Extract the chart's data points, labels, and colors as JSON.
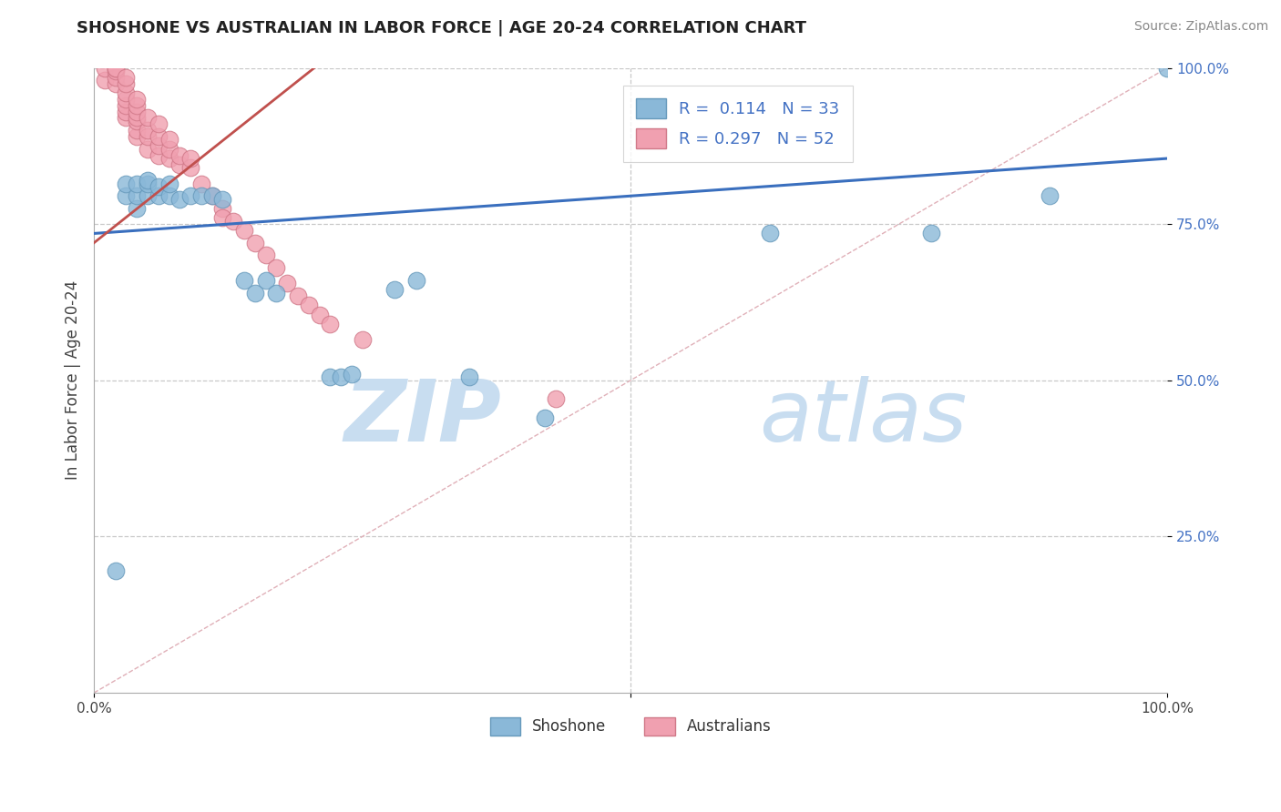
{
  "title": "SHOSHONE VS AUSTRALIAN IN LABOR FORCE | AGE 20-24 CORRELATION CHART",
  "source_text": "Source: ZipAtlas.com",
  "ylabel": "In Labor Force | Age 20-24",
  "xlim": [
    0.0,
    1.0
  ],
  "ylim": [
    0.0,
    1.0
  ],
  "shoshone_x": [
    0.02,
    0.03,
    0.03,
    0.04,
    0.04,
    0.04,
    0.05,
    0.05,
    0.05,
    0.06,
    0.06,
    0.07,
    0.07,
    0.08,
    0.09,
    0.1,
    0.11,
    0.12,
    0.14,
    0.15,
    0.16,
    0.17,
    0.22,
    0.23,
    0.24,
    0.28,
    0.3,
    0.35,
    0.42,
    0.63,
    0.78,
    0.89,
    1.0
  ],
  "shoshone_y": [
    0.195,
    0.795,
    0.815,
    0.775,
    0.795,
    0.815,
    0.795,
    0.815,
    0.82,
    0.795,
    0.81,
    0.795,
    0.815,
    0.79,
    0.795,
    0.795,
    0.795,
    0.79,
    0.66,
    0.64,
    0.66,
    0.64,
    0.505,
    0.505,
    0.51,
    0.645,
    0.66,
    0.505,
    0.44,
    0.735,
    0.735,
    0.795,
    1.0
  ],
  "australian_x": [
    0.01,
    0.01,
    0.02,
    0.02,
    0.02,
    0.02,
    0.02,
    0.03,
    0.03,
    0.03,
    0.03,
    0.03,
    0.03,
    0.03,
    0.04,
    0.04,
    0.04,
    0.04,
    0.04,
    0.04,
    0.04,
    0.05,
    0.05,
    0.05,
    0.05,
    0.06,
    0.06,
    0.06,
    0.06,
    0.07,
    0.07,
    0.07,
    0.08,
    0.08,
    0.09,
    0.09,
    0.1,
    0.11,
    0.12,
    0.12,
    0.13,
    0.14,
    0.15,
    0.16,
    0.17,
    0.18,
    0.19,
    0.2,
    0.21,
    0.22,
    0.25,
    0.43
  ],
  "australian_y": [
    0.98,
    1.0,
    0.975,
    0.985,
    0.995,
    1.0,
    1.0,
    0.92,
    0.93,
    0.94,
    0.95,
    0.96,
    0.975,
    0.985,
    0.89,
    0.9,
    0.915,
    0.92,
    0.93,
    0.94,
    0.95,
    0.87,
    0.89,
    0.9,
    0.92,
    0.86,
    0.875,
    0.89,
    0.91,
    0.855,
    0.87,
    0.885,
    0.845,
    0.86,
    0.84,
    0.855,
    0.815,
    0.795,
    0.775,
    0.76,
    0.755,
    0.74,
    0.72,
    0.7,
    0.68,
    0.655,
    0.635,
    0.62,
    0.605,
    0.59,
    0.565,
    0.47
  ],
  "blue_line_x": [
    0.0,
    1.0
  ],
  "blue_line_y": [
    0.735,
    0.855
  ],
  "pink_line_x": [
    0.0,
    0.22
  ],
  "pink_line_y": [
    0.72,
    1.02
  ],
  "diag_line_x": [
    0.0,
    1.0
  ],
  "diag_line_y": [
    0.0,
    1.0
  ],
  "dot_size": 180,
  "shoshone_color": "#8ab8d8",
  "shoshone_edge": "#6699bb",
  "australian_color": "#f0a0b0",
  "australian_edge": "#d07888",
  "blue_line_color": "#3a6fbe",
  "pink_line_color": "#c0504d",
  "grid_color": "#c8c8c8",
  "diag_color": "#e0b0b8",
  "watermark_zip_color": "#c8ddf0",
  "watermark_atlas_color": "#c8ddf0",
  "background_color": "#ffffff",
  "ytick_color": "#4472c4",
  "legend_label_color": "#4472c4"
}
